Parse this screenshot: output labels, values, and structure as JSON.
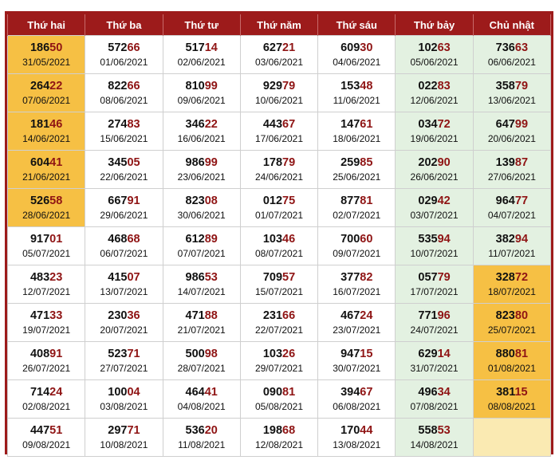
{
  "headers": [
    "Thứ hai",
    "Thứ ba",
    "Thứ tư",
    "Thứ năm",
    "Thứ sáu",
    "Thứ bảy",
    "Chủ nhật"
  ],
  "colors": {
    "header_bg": "#9d1b1b",
    "highlight": "#f6c044",
    "weekend_bg": "#e3f1e1",
    "empty_bg": "#faeab2",
    "last_two_digits": "#8f1414"
  },
  "rows": [
    [
      {
        "head": "186",
        "tail": "50",
        "date": "31/05/2021",
        "highlight": true
      },
      {
        "head": "572",
        "tail": "66",
        "date": "01/06/2021"
      },
      {
        "head": "517",
        "tail": "14",
        "date": "02/06/2021"
      },
      {
        "head": "627",
        "tail": "21",
        "date": "03/06/2021"
      },
      {
        "head": "609",
        "tail": "30",
        "date": "04/06/2021"
      },
      {
        "head": "102",
        "tail": "63",
        "date": "05/06/2021"
      },
      {
        "head": "736",
        "tail": "63",
        "date": "06/06/2021"
      }
    ],
    [
      {
        "head": "264",
        "tail": "22",
        "date": "07/06/2021",
        "highlight": true
      },
      {
        "head": "822",
        "tail": "66",
        "date": "08/06/2021"
      },
      {
        "head": "810",
        "tail": "99",
        "date": "09/06/2021"
      },
      {
        "head": "929",
        "tail": "79",
        "date": "10/06/2021"
      },
      {
        "head": "153",
        "tail": "48",
        "date": "11/06/2021"
      },
      {
        "head": "022",
        "tail": "83",
        "date": "12/06/2021"
      },
      {
        "head": "358",
        "tail": "79",
        "date": "13/06/2021"
      }
    ],
    [
      {
        "head": "181",
        "tail": "46",
        "date": "14/06/2021",
        "highlight": true
      },
      {
        "head": "274",
        "tail": "83",
        "date": "15/06/2021"
      },
      {
        "head": "346",
        "tail": "22",
        "date": "16/06/2021"
      },
      {
        "head": "443",
        "tail": "67",
        "date": "17/06/2021"
      },
      {
        "head": "147",
        "tail": "61",
        "date": "18/06/2021"
      },
      {
        "head": "034",
        "tail": "72",
        "date": "19/06/2021"
      },
      {
        "head": "647",
        "tail": "99",
        "date": "20/06/2021"
      }
    ],
    [
      {
        "head": "604",
        "tail": "41",
        "date": "21/06/2021",
        "highlight": true
      },
      {
        "head": "345",
        "tail": "05",
        "date": "22/06/2021"
      },
      {
        "head": "986",
        "tail": "99",
        "date": "23/06/2021"
      },
      {
        "head": "178",
        "tail": "79",
        "date": "24/06/2021"
      },
      {
        "head": "259",
        "tail": "85",
        "date": "25/06/2021"
      },
      {
        "head": "202",
        "tail": "90",
        "date": "26/06/2021"
      },
      {
        "head": "139",
        "tail": "87",
        "date": "27/06/2021"
      }
    ],
    [
      {
        "head": "526",
        "tail": "58",
        "date": "28/06/2021",
        "highlight": true
      },
      {
        "head": "667",
        "tail": "91",
        "date": "29/06/2021"
      },
      {
        "head": "823",
        "tail": "08",
        "date": "30/06/2021"
      },
      {
        "head": "012",
        "tail": "75",
        "date": "01/07/2021"
      },
      {
        "head": "877",
        "tail": "81",
        "date": "02/07/2021"
      },
      {
        "head": "029",
        "tail": "42",
        "date": "03/07/2021"
      },
      {
        "head": "964",
        "tail": "77",
        "date": "04/07/2021"
      }
    ],
    [
      {
        "head": "917",
        "tail": "01",
        "date": "05/07/2021"
      },
      {
        "head": "468",
        "tail": "68",
        "date": "06/07/2021"
      },
      {
        "head": "612",
        "tail": "89",
        "date": "07/07/2021"
      },
      {
        "head": "103",
        "tail": "46",
        "date": "08/07/2021"
      },
      {
        "head": "700",
        "tail": "60",
        "date": "09/07/2021"
      },
      {
        "head": "535",
        "tail": "94",
        "date": "10/07/2021"
      },
      {
        "head": "382",
        "tail": "94",
        "date": "11/07/2021"
      }
    ],
    [
      {
        "head": "483",
        "tail": "23",
        "date": "12/07/2021"
      },
      {
        "head": "415",
        "tail": "07",
        "date": "13/07/2021"
      },
      {
        "head": "986",
        "tail": "53",
        "date": "14/07/2021"
      },
      {
        "head": "709",
        "tail": "57",
        "date": "15/07/2021"
      },
      {
        "head": "377",
        "tail": "82",
        "date": "16/07/2021"
      },
      {
        "head": "057",
        "tail": "79",
        "date": "17/07/2021"
      },
      {
        "head": "328",
        "tail": "72",
        "date": "18/07/2021",
        "highlight": true
      }
    ],
    [
      {
        "head": "471",
        "tail": "33",
        "date": "19/07/2021"
      },
      {
        "head": "230",
        "tail": "36",
        "date": "20/07/2021"
      },
      {
        "head": "471",
        "tail": "88",
        "date": "21/07/2021"
      },
      {
        "head": "231",
        "tail": "66",
        "date": "22/07/2021"
      },
      {
        "head": "467",
        "tail": "24",
        "date": "23/07/2021"
      },
      {
        "head": "771",
        "tail": "96",
        "date": "24/07/2021"
      },
      {
        "head": "823",
        "tail": "80",
        "date": "25/07/2021",
        "highlight": true
      }
    ],
    [
      {
        "head": "408",
        "tail": "91",
        "date": "26/07/2021"
      },
      {
        "head": "523",
        "tail": "71",
        "date": "27/07/2021"
      },
      {
        "head": "500",
        "tail": "98",
        "date": "28/07/2021"
      },
      {
        "head": "103",
        "tail": "26",
        "date": "29/07/2021"
      },
      {
        "head": "947",
        "tail": "15",
        "date": "30/07/2021"
      },
      {
        "head": "629",
        "tail": "14",
        "date": "31/07/2021"
      },
      {
        "head": "880",
        "tail": "81",
        "date": "01/08/2021",
        "highlight": true
      }
    ],
    [
      {
        "head": "714",
        "tail": "24",
        "date": "02/08/2021"
      },
      {
        "head": "100",
        "tail": "04",
        "date": "03/08/2021"
      },
      {
        "head": "464",
        "tail": "41",
        "date": "04/08/2021"
      },
      {
        "head": "090",
        "tail": "81",
        "date": "05/08/2021"
      },
      {
        "head": "394",
        "tail": "67",
        "date": "06/08/2021"
      },
      {
        "head": "496",
        "tail": "34",
        "date": "07/08/2021"
      },
      {
        "head": "381",
        "tail": "15",
        "date": "08/08/2021",
        "highlight": true
      }
    ],
    [
      {
        "head": "447",
        "tail": "51",
        "date": "09/08/2021"
      },
      {
        "head": "297",
        "tail": "71",
        "date": "10/08/2021"
      },
      {
        "head": "536",
        "tail": "20",
        "date": "11/08/2021"
      },
      {
        "head": "198",
        "tail": "68",
        "date": "12/08/2021"
      },
      {
        "head": "170",
        "tail": "44",
        "date": "13/08/2021"
      },
      {
        "head": "558",
        "tail": "53",
        "date": "14/08/2021"
      },
      null
    ]
  ]
}
